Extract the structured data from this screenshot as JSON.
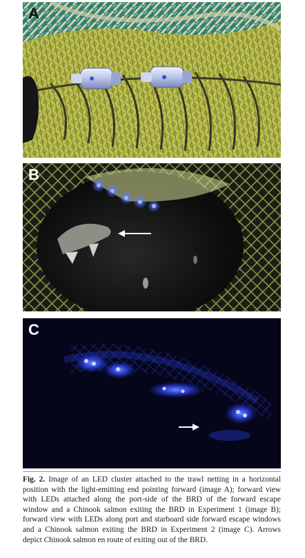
{
  "panels": [
    {
      "label": "A",
      "alt_description": "LED cluster on trawl netting"
    },
    {
      "label": "B",
      "alt_description": "forward view with LEDs along port side, Chinook salmon exiting"
    },
    {
      "label": "C",
      "alt_description": "forward view with LEDs along port and starboard side, Chinook salmon exiting"
    }
  ],
  "caption": {
    "label": "Fig. 2.",
    "text": "Image of an LED cluster attached to the trawl netting in a horizontal position with the light-emitting end pointing forward (image A); forward view with LEDs attached along the port-side of the BRD of the forward escape window and a Chinook salmon exiting the BRD in Experiment 1 (image B); forward view with LEDs along port and starboard side forward escape windows and a Chinook salmon exiting the BRD in Experiment 2 (image C). Arrows depict Chinook salmon en route of exiting out of the BRD."
  },
  "colors": {
    "net_green": "#8a9a3a",
    "rope_teal": "#3e8a7a",
    "led_blue": "#2f4bff",
    "panel_c_bg": "#06061a"
  }
}
